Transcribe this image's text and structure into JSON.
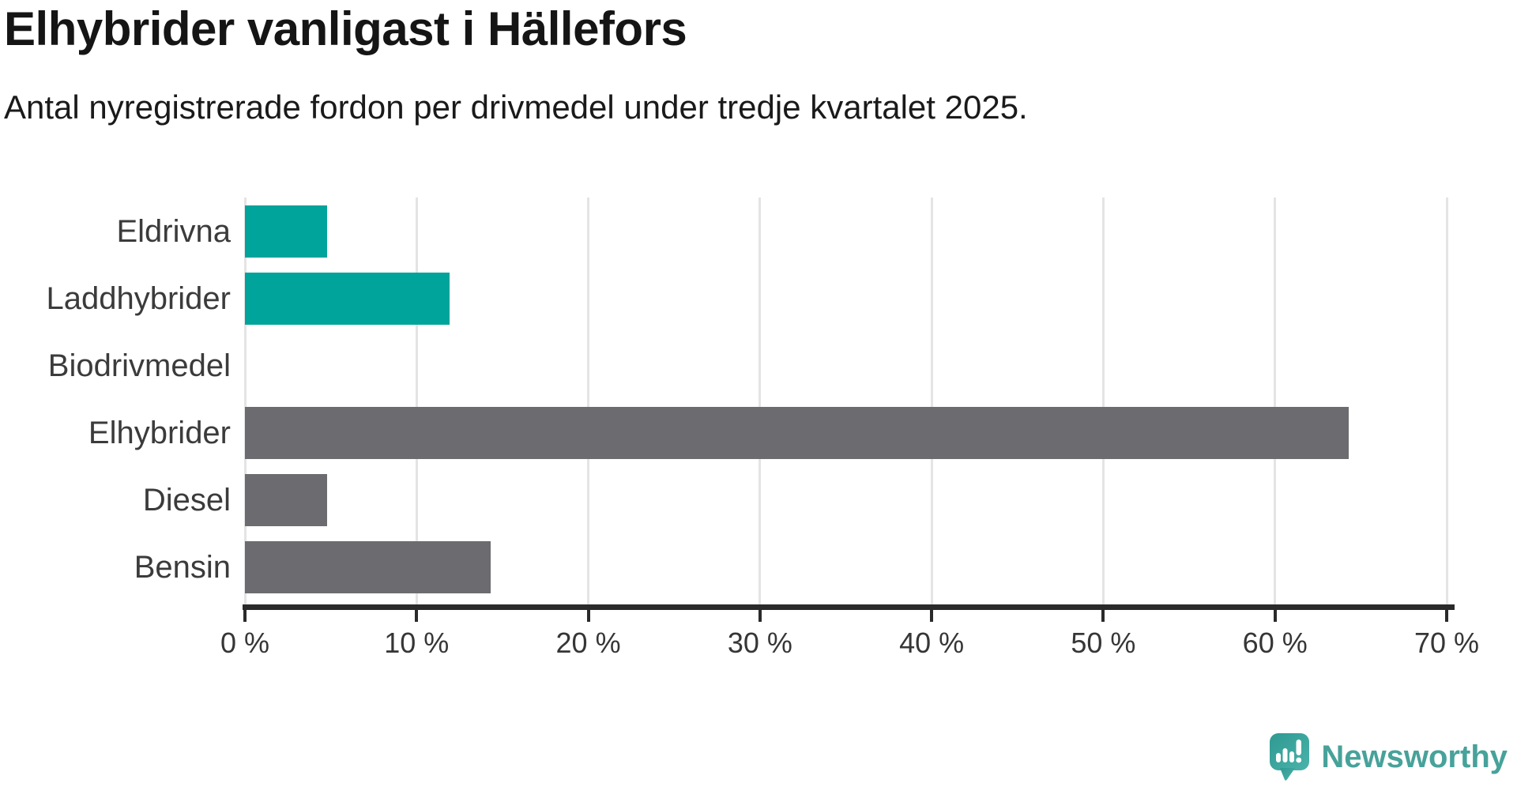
{
  "chart_data": {
    "type": "bar",
    "orientation": "horizontal",
    "title": "Elhybrider vanligast i Hällefors",
    "subtitle": "Antal nyregistrerade fordon per drivmedel under tredje kvartalet 2025.",
    "categories": [
      "Eldrivna",
      "Laddhybrider",
      "Biodrivmedel",
      "Elhybrider",
      "Diesel",
      "Bensin"
    ],
    "values": [
      4.8,
      11.9,
      0,
      64.3,
      4.8,
      14.3
    ],
    "unit": "%",
    "xlabel": "",
    "ylabel": "",
    "xlim": [
      0,
      70
    ],
    "x_ticks": [
      0,
      10,
      20,
      30,
      40,
      50,
      60,
      70
    ],
    "x_tick_labels": [
      "0 %",
      "10 %",
      "20 %",
      "30 %",
      "40 %",
      "50 %",
      "60 %",
      "70 %"
    ],
    "grid": "vertical-only",
    "legend": "none",
    "bar_colors": [
      "#00a49b",
      "#00a49b",
      "#6b6b70",
      "#6b6b70",
      "#6b6b70",
      "#6b6b70"
    ],
    "colors": {
      "highlight": "#00a49b",
      "default_bar": "#6b6b70",
      "gridline": "#e4e4e4",
      "axis": "#2a2a2a",
      "title": "#151515",
      "subtitle": "#1a1a1a",
      "category_label": "#3b3b3b",
      "tick_label": "#363636"
    }
  },
  "footer": {
    "brand": "Newsworthy",
    "brand_color": "#47a29a",
    "icon": "newsworthy-speech-bubble-bar-chart-icon"
  }
}
